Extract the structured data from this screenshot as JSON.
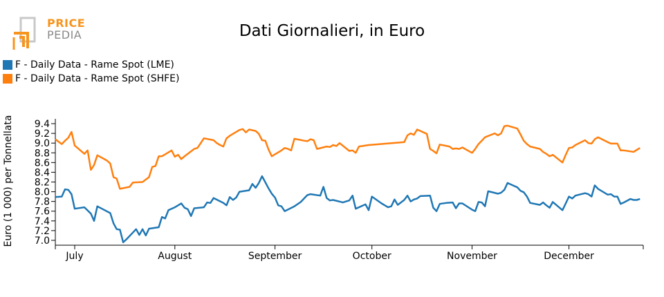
{
  "logo": {
    "line1": "PRICE",
    "line2": "PEDIA"
  },
  "chart_data": {
    "type": "line",
    "title": "Dati Giornalieri, in Euro",
    "ylabel": "Euro (1 000) per Tonnellata",
    "ylim": [
      6.9,
      9.5
    ],
    "yticks": [
      7.0,
      7.2,
      7.4,
      7.6,
      7.8,
      8.0,
      8.2,
      8.4,
      8.6,
      8.8,
      9.0,
      9.2,
      9.4
    ],
    "xlim": [
      0,
      182
    ],
    "xticks": [
      {
        "label": "July",
        "x": 6
      },
      {
        "label": "August",
        "x": 37
      },
      {
        "label": "September",
        "x": 68
      },
      {
        "label": "October",
        "x": 98
      },
      {
        "label": "November",
        "x": 129
      },
      {
        "label": "December",
        "x": 159
      }
    ],
    "legend_position": "top-left",
    "series": [
      {
        "name": "F - Daily Data - Rame Spot (LME)",
        "color": "#1f77b4",
        "points": [
          [
            0,
            7.89
          ],
          [
            2,
            7.9
          ],
          [
            3,
            8.05
          ],
          [
            4,
            8.04
          ],
          [
            5,
            7.95
          ],
          [
            6,
            7.65
          ],
          [
            9,
            7.68
          ],
          [
            11,
            7.55
          ],
          [
            12,
            7.4
          ],
          [
            13,
            7.7
          ],
          [
            17,
            7.56
          ],
          [
            18,
            7.35
          ],
          [
            19,
            7.23
          ],
          [
            20,
            7.22
          ],
          [
            21,
            6.96
          ],
          [
            22,
            7.02
          ],
          [
            24,
            7.16
          ],
          [
            25,
            7.23
          ],
          [
            26,
            7.11
          ],
          [
            27,
            7.23
          ],
          [
            28,
            7.1
          ],
          [
            29,
            7.24
          ],
          [
            32,
            7.27
          ],
          [
            33,
            7.48
          ],
          [
            34,
            7.45
          ],
          [
            35,
            7.62
          ],
          [
            37,
            7.68
          ],
          [
            38,
            7.72
          ],
          [
            39,
            7.76
          ],
          [
            40,
            7.67
          ],
          [
            41,
            7.64
          ],
          [
            42,
            7.5
          ],
          [
            43,
            7.66
          ],
          [
            46,
            7.68
          ],
          [
            47,
            7.78
          ],
          [
            48,
            7.77
          ],
          [
            49,
            7.87
          ],
          [
            52,
            7.77
          ],
          [
            53,
            7.72
          ],
          [
            54,
            7.89
          ],
          [
            55,
            7.83
          ],
          [
            56,
            7.88
          ],
          [
            57,
            8.0
          ],
          [
            60,
            8.03
          ],
          [
            61,
            8.16
          ],
          [
            62,
            8.08
          ],
          [
            63,
            8.18
          ],
          [
            64,
            8.32
          ],
          [
            66,
            8.07
          ],
          [
            67,
            7.96
          ],
          [
            68,
            7.88
          ],
          [
            69,
            7.72
          ],
          [
            70,
            7.7
          ],
          [
            71,
            7.6
          ],
          [
            74,
            7.7
          ],
          [
            76,
            7.79
          ],
          [
            77,
            7.86
          ],
          [
            78,
            7.93
          ],
          [
            79,
            7.95
          ],
          [
            82,
            7.92
          ],
          [
            83,
            8.1
          ],
          [
            84,
            7.87
          ],
          [
            85,
            7.82
          ],
          [
            86,
            7.83
          ],
          [
            89,
            7.78
          ],
          [
            91,
            7.82
          ],
          [
            92,
            7.92
          ],
          [
            93,
            7.65
          ],
          [
            96,
            7.74
          ],
          [
            97,
            7.62
          ],
          [
            98,
            7.9
          ],
          [
            101,
            7.76
          ],
          [
            102,
            7.72
          ],
          [
            103,
            7.68
          ],
          [
            104,
            7.7
          ],
          [
            105,
            7.84
          ],
          [
            106,
            7.73
          ],
          [
            108,
            7.83
          ],
          [
            109,
            7.92
          ],
          [
            110,
            7.8
          ],
          [
            111,
            7.84
          ],
          [
            112,
            7.86
          ],
          [
            113,
            7.91
          ],
          [
            116,
            7.92
          ],
          [
            117,
            7.67
          ],
          [
            118,
            7.6
          ],
          [
            119,
            7.75
          ],
          [
            121,
            7.77
          ],
          [
            123,
            7.78
          ],
          [
            124,
            7.66
          ],
          [
            125,
            7.76
          ],
          [
            126,
            7.76
          ],
          [
            129,
            7.63
          ],
          [
            130,
            7.6
          ],
          [
            131,
            7.79
          ],
          [
            132,
            7.78
          ],
          [
            133,
            7.7
          ],
          [
            134,
            8.01
          ],
          [
            137,
            7.96
          ],
          [
            138,
            7.98
          ],
          [
            139,
            8.04
          ],
          [
            140,
            8.18
          ],
          [
            142,
            8.12
          ],
          [
            143,
            8.09
          ],
          [
            144,
            8.02
          ],
          [
            145,
            7.99
          ],
          [
            146,
            7.9
          ],
          [
            147,
            7.77
          ],
          [
            150,
            7.73
          ],
          [
            151,
            7.78
          ],
          [
            152,
            7.72
          ],
          [
            153,
            7.67
          ],
          [
            154,
            7.79
          ],
          [
            157,
            7.62
          ],
          [
            158,
            7.76
          ],
          [
            159,
            7.9
          ],
          [
            160,
            7.86
          ],
          [
            161,
            7.92
          ],
          [
            164,
            7.97
          ],
          [
            165,
            7.95
          ],
          [
            166,
            7.9
          ],
          [
            167,
            8.13
          ],
          [
            168,
            8.06
          ],
          [
            171,
            7.94
          ],
          [
            172,
            7.95
          ],
          [
            173,
            7.9
          ],
          [
            174,
            7.9
          ],
          [
            175,
            7.75
          ],
          [
            176,
            7.78
          ],
          [
            178,
            7.85
          ],
          [
            179,
            7.83
          ],
          [
            180,
            7.83
          ],
          [
            181,
            7.85
          ]
        ]
      },
      {
        "name": "F - Daily Data - Rame Spot (SHFE)",
        "color": "#ff7f0e",
        "points": [
          [
            0,
            9.08
          ],
          [
            2,
            8.98
          ],
          [
            3,
            9.05
          ],
          [
            4,
            9.11
          ],
          [
            5,
            9.23
          ],
          [
            6,
            8.95
          ],
          [
            9,
            8.78
          ],
          [
            10,
            8.85
          ],
          [
            11,
            8.45
          ],
          [
            12,
            8.55
          ],
          [
            13,
            8.75
          ],
          [
            16,
            8.64
          ],
          [
            17,
            8.58
          ],
          [
            18,
            8.3
          ],
          [
            19,
            8.27
          ],
          [
            20,
            8.06
          ],
          [
            23,
            8.1
          ],
          [
            24,
            8.19
          ],
          [
            27,
            8.2
          ],
          [
            29,
            8.3
          ],
          [
            30,
            8.51
          ],
          [
            31,
            8.53
          ],
          [
            32,
            8.73
          ],
          [
            33,
            8.73
          ],
          [
            34,
            8.77
          ],
          [
            36,
            8.85
          ],
          [
            37,
            8.72
          ],
          [
            38,
            8.76
          ],
          [
            39,
            8.67
          ],
          [
            40,
            8.73
          ],
          [
            43,
            8.88
          ],
          [
            44,
            8.9
          ],
          [
            45,
            9.0
          ],
          [
            46,
            9.1
          ],
          [
            49,
            9.06
          ],
          [
            50,
            9.0
          ],
          [
            51,
            8.96
          ],
          [
            52,
            8.93
          ],
          [
            53,
            9.1
          ],
          [
            54,
            9.15
          ],
          [
            57,
            9.27
          ],
          [
            58,
            9.29
          ],
          [
            59,
            9.22
          ],
          [
            60,
            9.28
          ],
          [
            62,
            9.25
          ],
          [
            63,
            9.19
          ],
          [
            64,
            9.06
          ],
          [
            65,
            9.05
          ],
          [
            66,
            8.87
          ],
          [
            67,
            8.73
          ],
          [
            70,
            8.85
          ],
          [
            71,
            8.9
          ],
          [
            72,
            8.88
          ],
          [
            73,
            8.85
          ],
          [
            74,
            9.09
          ],
          [
            77,
            9.05
          ],
          [
            78,
            9.04
          ],
          [
            79,
            9.08
          ],
          [
            80,
            9.06
          ],
          [
            81,
            8.88
          ],
          [
            84,
            8.93
          ],
          [
            85,
            8.92
          ],
          [
            86,
            8.96
          ],
          [
            87,
            8.94
          ],
          [
            88,
            9.0
          ],
          [
            91,
            8.84
          ],
          [
            92,
            8.85
          ],
          [
            93,
            8.8
          ],
          [
            94,
            8.93
          ],
          [
            97,
            8.96
          ],
          [
            108,
            9.02
          ],
          [
            109,
            9.16
          ],
          [
            110,
            9.2
          ],
          [
            111,
            9.17
          ],
          [
            112,
            9.28
          ],
          [
            115,
            9.19
          ],
          [
            116,
            8.88
          ],
          [
            117,
            8.84
          ],
          [
            118,
            8.79
          ],
          [
            119,
            8.97
          ],
          [
            122,
            8.93
          ],
          [
            123,
            8.88
          ],
          [
            124,
            8.89
          ],
          [
            125,
            8.88
          ],
          [
            126,
            8.91
          ],
          [
            129,
            8.8
          ],
          [
            130,
            8.88
          ],
          [
            131,
            8.98
          ],
          [
            132,
            9.05
          ],
          [
            133,
            9.12
          ],
          [
            136,
            9.2
          ],
          [
            137,
            9.16
          ],
          [
            138,
            9.2
          ],
          [
            139,
            9.35
          ],
          [
            140,
            9.36
          ],
          [
            143,
            9.3
          ],
          [
            144,
            9.18
          ],
          [
            145,
            9.05
          ],
          [
            146,
            8.98
          ],
          [
            147,
            8.93
          ],
          [
            150,
            8.88
          ],
          [
            151,
            8.82
          ],
          [
            152,
            8.78
          ],
          [
            153,
            8.73
          ],
          [
            154,
            8.76
          ],
          [
            157,
            8.6
          ],
          [
            158,
            8.76
          ],
          [
            159,
            8.9
          ],
          [
            160,
            8.91
          ],
          [
            161,
            8.96
          ],
          [
            164,
            9.06
          ],
          [
            165,
            9.0
          ],
          [
            166,
            8.99
          ],
          [
            167,
            9.08
          ],
          [
            168,
            9.12
          ],
          [
            171,
            9.02
          ],
          [
            172,
            8.99
          ],
          [
            173,
            8.99
          ],
          [
            174,
            8.99
          ],
          [
            175,
            8.85
          ],
          [
            176,
            8.85
          ],
          [
            178,
            8.83
          ],
          [
            179,
            8.82
          ],
          [
            180,
            8.86
          ],
          [
            181,
            8.9
          ]
        ]
      }
    ]
  }
}
